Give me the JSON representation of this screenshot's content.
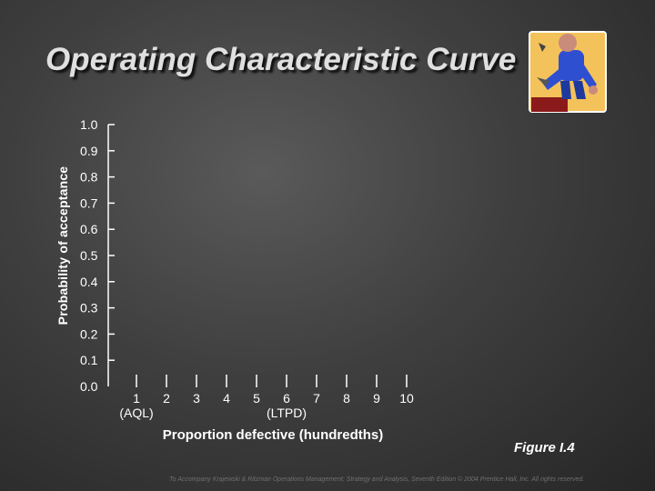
{
  "chart_data": {
    "type": "line",
    "title": "Operating Characteristic Curve",
    "xlabel": "Proportion defective (hundredths)",
    "ylabel": "Probability of acceptance",
    "x_ticks": [
      "1",
      "2",
      "3",
      "4",
      "5",
      "6",
      "7",
      "8",
      "9",
      "10"
    ],
    "y_ticks": [
      "0.0",
      "0.1",
      "0.2",
      "0.3",
      "0.4",
      "0.5",
      "0.6",
      "0.7",
      "0.8",
      "0.9",
      "1.0"
    ],
    "xlim": [
      0,
      10
    ],
    "ylim": [
      0,
      1
    ],
    "annotations": [
      {
        "label": "(AQL)",
        "x": 1
      },
      {
        "label": "(LTPD)",
        "x": 6
      }
    ],
    "series": [],
    "grid": false,
    "legend": "none"
  },
  "figure_label": "Figure I.4",
  "footer": "To Accompany Krajewski & Ritzman Operations Management: Strategy and Analysis, Seventh Edition © 2004 Prentice Hall, Inc. All rights reserved.",
  "clipart_icon": "worker-with-wrench-icon",
  "colors": {
    "text": "#ffffff",
    "title": "#e0e0e0",
    "axis": "#ffffff",
    "clipart_bg": "#f4c25a"
  }
}
